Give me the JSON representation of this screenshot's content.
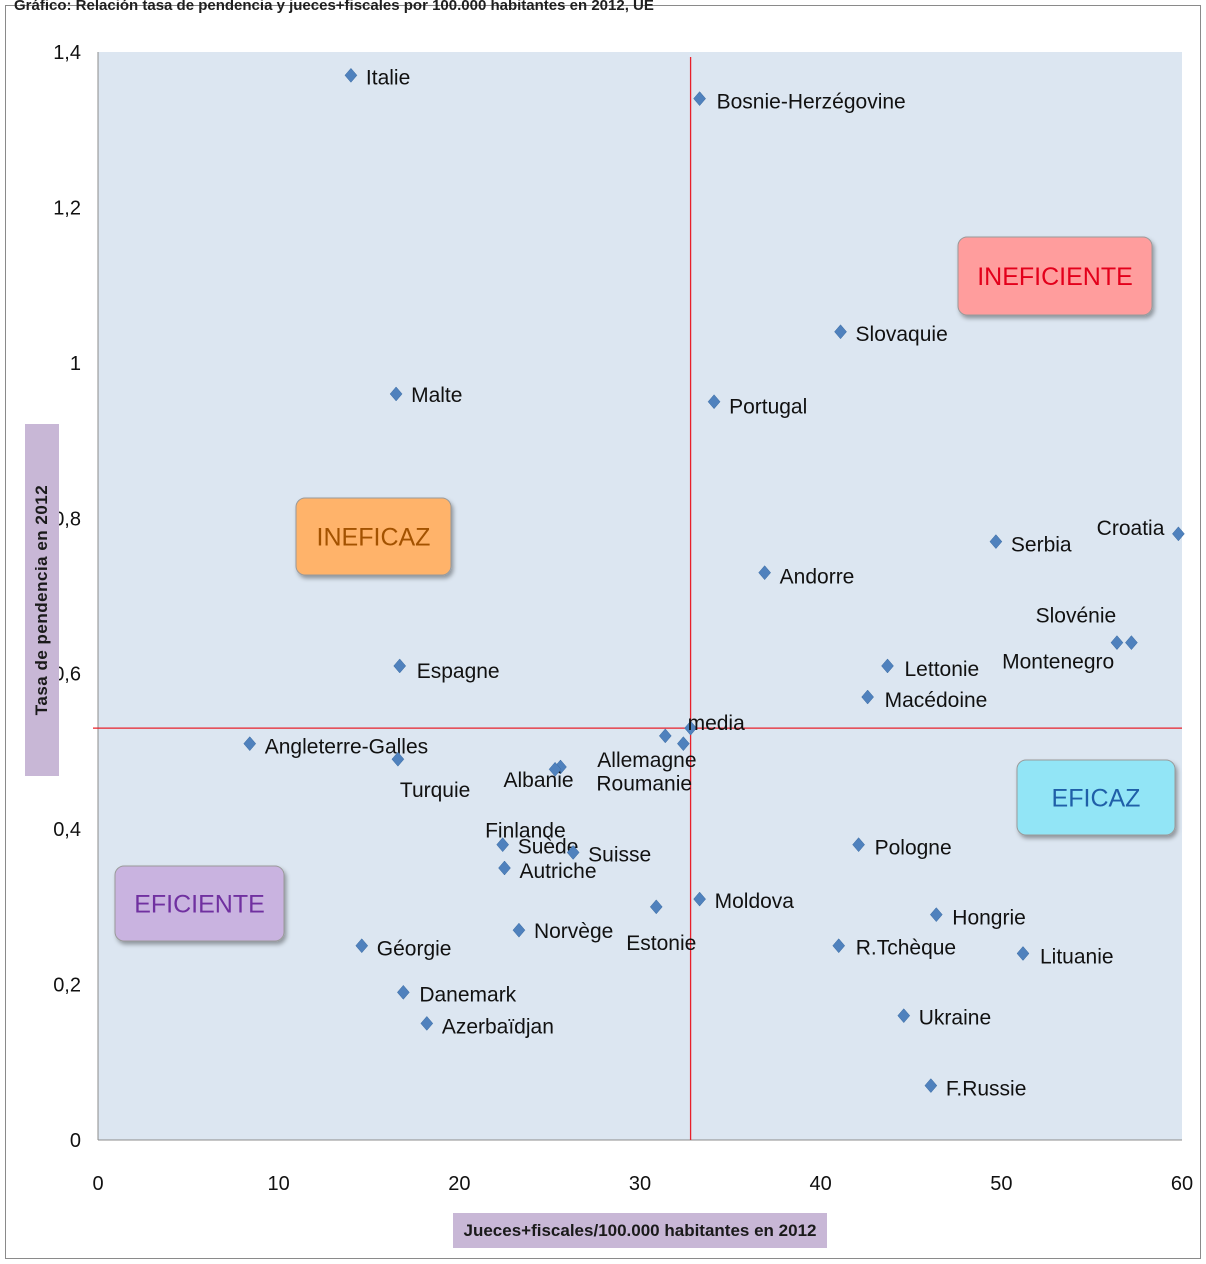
{
  "page_title": "Gráfico: Relación tasa de pendencia y jueces+fiscales por 100.000 habitantes en 2012, UE",
  "chart_data": {
    "type": "scatter",
    "xlabel": "Jueces+fiscales/100.000 habitantes en 2012",
    "ylabel": "Tasa de pendencia en 2012",
    "xlim": [
      0,
      60
    ],
    "ylim": [
      0,
      1.4
    ],
    "x_ticks": [
      "0",
      "10",
      "20",
      "30",
      "40",
      "50",
      "60"
    ],
    "y_ticks": [
      "0",
      "0,2",
      "0,4",
      "0,6",
      "0,8",
      "1",
      "1,2",
      "1,4"
    ],
    "grid": false,
    "marker_color": "#4f81bd",
    "plot_background": "#dce6f1",
    "reference_line_color": "#e8202a",
    "mean": {
      "x": 32.8,
      "y": 0.53,
      "label": "media"
    },
    "points": [
      {
        "label": "Italie",
        "x": 14.0,
        "y": 1.37
      },
      {
        "label": "Bosnie-Herzégovine",
        "x": 33.3,
        "y": 1.34
      },
      {
        "label": "Slovaquie",
        "x": 41.1,
        "y": 1.04
      },
      {
        "label": "Malte",
        "x": 16.5,
        "y": 0.96
      },
      {
        "label": "Portugal",
        "x": 34.1,
        "y": 0.95
      },
      {
        "label": "Croatia",
        "x": 59.8,
        "y": 0.78
      },
      {
        "label": "Serbia",
        "x": 49.7,
        "y": 0.77
      },
      {
        "label": "Andorre",
        "x": 36.9,
        "y": 0.73
      },
      {
        "label": "Slovénie",
        "x": 56.4,
        "y": 0.64
      },
      {
        "label": "Montenegro",
        "x": 57.2,
        "y": 0.64
      },
      {
        "label": "Espagne",
        "x": 16.7,
        "y": 0.61
      },
      {
        "label": "Lettonie",
        "x": 43.7,
        "y": 0.61
      },
      {
        "label": "Macédoine",
        "x": 42.6,
        "y": 0.57
      },
      {
        "label": "Allemagne",
        "x": 31.4,
        "y": 0.52
      },
      {
        "label": "Roumanie",
        "x": 32.4,
        "y": 0.51
      },
      {
        "label": "Angleterre-Galles",
        "x": 8.4,
        "y": 0.51
      },
      {
        "label": "Turquie",
        "x": 16.6,
        "y": 0.49
      },
      {
        "label": "Albanie",
        "x": 25.6,
        "y": 0.48
      },
      {
        "label": "Finlande",
        "x": 25.3,
        "y": 0.477
      },
      {
        "label": "Suède",
        "x": 22.4,
        "y": 0.38
      },
      {
        "label": "Suisse",
        "x": 26.3,
        "y": 0.37
      },
      {
        "label": "Autriche",
        "x": 22.5,
        "y": 0.35
      },
      {
        "label": "Pologne",
        "x": 42.1,
        "y": 0.38
      },
      {
        "label": "Moldova",
        "x": 33.3,
        "y": 0.31
      },
      {
        "label": "Estonie",
        "x": 30.9,
        "y": 0.3
      },
      {
        "label": "Hongrie",
        "x": 46.4,
        "y": 0.29
      },
      {
        "label": "Norvège",
        "x": 23.3,
        "y": 0.27
      },
      {
        "label": "Géorgie",
        "x": 14.6,
        "y": 0.25
      },
      {
        "label": "R.Tchèque",
        "x": 41.0,
        "y": 0.25
      },
      {
        "label": "Lituanie",
        "x": 51.2,
        "y": 0.24
      },
      {
        "label": "Danemark",
        "x": 16.9,
        "y": 0.19
      },
      {
        "label": "Azerbaïdjan",
        "x": 18.2,
        "y": 0.15
      },
      {
        "label": "Ukraine",
        "x": 44.6,
        "y": 0.16
      },
      {
        "label": "F.Russie",
        "x": 46.1,
        "y": 0.07
      }
    ],
    "quadrant_labels": [
      {
        "text": "INEFICIENTE",
        "fill": "#ff9d9d",
        "text_color": "#e3001b"
      },
      {
        "text": "INEFICAZ",
        "fill": "#ffb36b",
        "text_color": "#a35200"
      },
      {
        "text": "EFICAZ",
        "fill": "#92e5f6",
        "text_color": "#1f5fa8"
      },
      {
        "text": "EFICIENTE",
        "fill": "#c9b3e0",
        "text_color": "#7030a0"
      }
    ]
  }
}
